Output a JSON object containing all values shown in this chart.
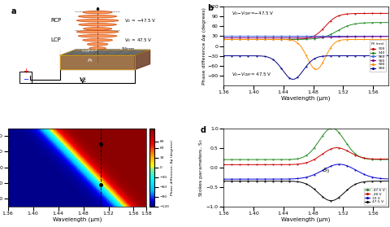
{
  "fig_width": 4.8,
  "fig_height": 2.79,
  "dpi": 100,
  "panel_b": {
    "label": "b",
    "xlabel": "Wavelength (μm)",
    "ylabel": "Phase difference Δφ (degrees)",
    "ylim": [
      -120,
      120
    ],
    "xlim": [
      1.36,
      1.58
    ],
    "yticks": [
      -90,
      -60,
      -30,
      0,
      30,
      60,
      90,
      120
    ],
    "xticks": [
      1.36,
      1.4,
      1.44,
      1.48,
      1.52,
      1.56
    ],
    "colors": [
      "#cc0000",
      "#228B22",
      "#4169E1",
      "#800080",
      "#FF8C00",
      "#00008B"
    ],
    "labels": [
      "500",
      "540",
      "560",
      "580",
      "590",
      "580"
    ]
  },
  "panel_c": {
    "label": "c",
    "xlabel": "Wavelength (μm)",
    "ylabel": "V$_G$ - V$_{CNP}$ (V)",
    "title": "Phase difference, Δφ (degrees)",
    "xlim": [
      1.36,
      1.58
    ],
    "ylim": [
      -50,
      50
    ],
    "xticks": [
      1.36,
      1.4,
      1.44,
      1.48,
      1.52,
      1.56,
      1.58
    ],
    "yticks": [
      -40,
      -20,
      0,
      20,
      40
    ],
    "colorbar_ticks": [
      80,
      60,
      30,
      0,
      -30,
      -60,
      -90,
      -120
    ],
    "dashed_line_wl": 1.508,
    "dot1_vg": 30,
    "dot2_vg": -22
  },
  "panel_d": {
    "label": "d",
    "xlabel": "Wavelength (μm)",
    "ylabel": "Stokes parameters, S$_3$",
    "ylim": [
      -1.0,
      1.0
    ],
    "xlim": [
      1.36,
      1.58
    ],
    "yticks": [
      -1.0,
      -0.5,
      0.0,
      0.5,
      1.0
    ],
    "xticks": [
      1.36,
      1.4,
      1.44,
      1.48,
      1.52,
      1.56
    ],
    "colors": [
      "#228B22",
      "#cc0000",
      "#0000cc",
      "#000000"
    ],
    "labels": [
      "-47.5 V",
      "-28 V",
      "10 V",
      "47.5 V"
    ]
  }
}
